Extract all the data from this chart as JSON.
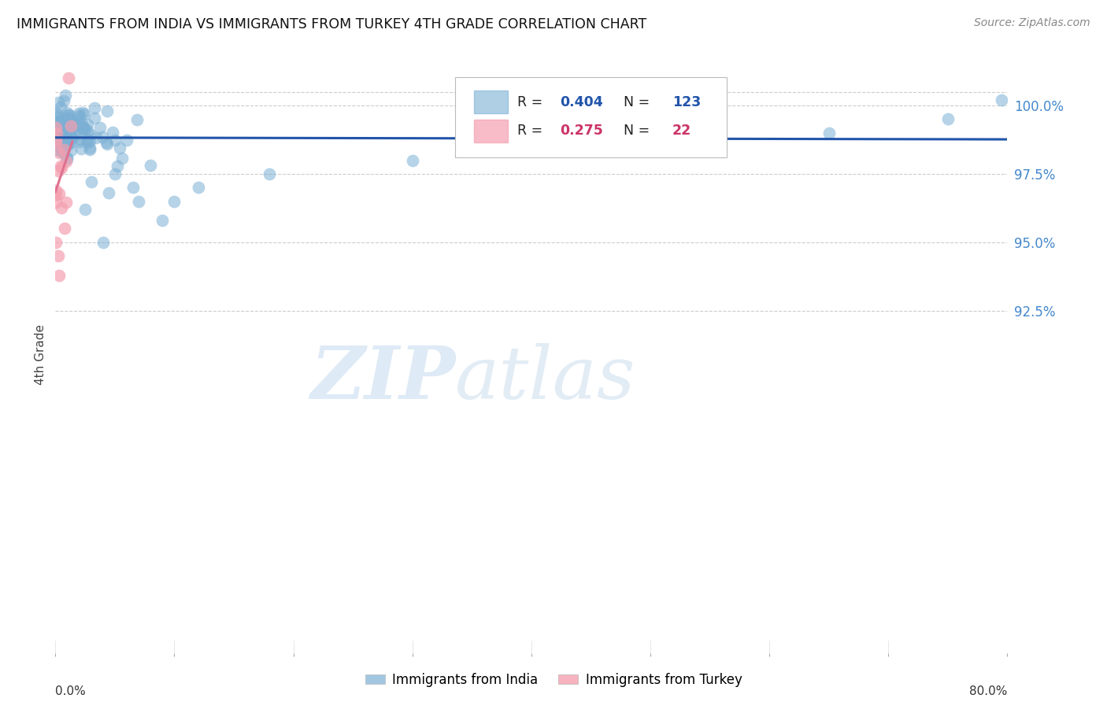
{
  "title": "IMMIGRANTS FROM INDIA VS IMMIGRANTS FROM TURKEY 4TH GRADE CORRELATION CHART",
  "source": "Source: ZipAtlas.com",
  "ylabel": "4th Grade",
  "xlim": [
    0.0,
    80.0
  ],
  "ylim": [
    80.0,
    101.8
  ],
  "yticks_right": [
    92.5,
    95.0,
    97.5,
    100.0
  ],
  "india_R": 0.404,
  "india_N": 123,
  "turkey_R": 0.275,
  "turkey_N": 22,
  "india_color": "#7BAFD4",
  "turkey_color": "#F4A0B0",
  "india_line_color": "#2255AA",
  "turkey_line_color": "#E07090",
  "watermark_zip": "ZIP",
  "watermark_atlas": "atlas",
  "background_color": "#FFFFFF",
  "grid_color": "#CCCCCC",
  "grid_style": "--"
}
